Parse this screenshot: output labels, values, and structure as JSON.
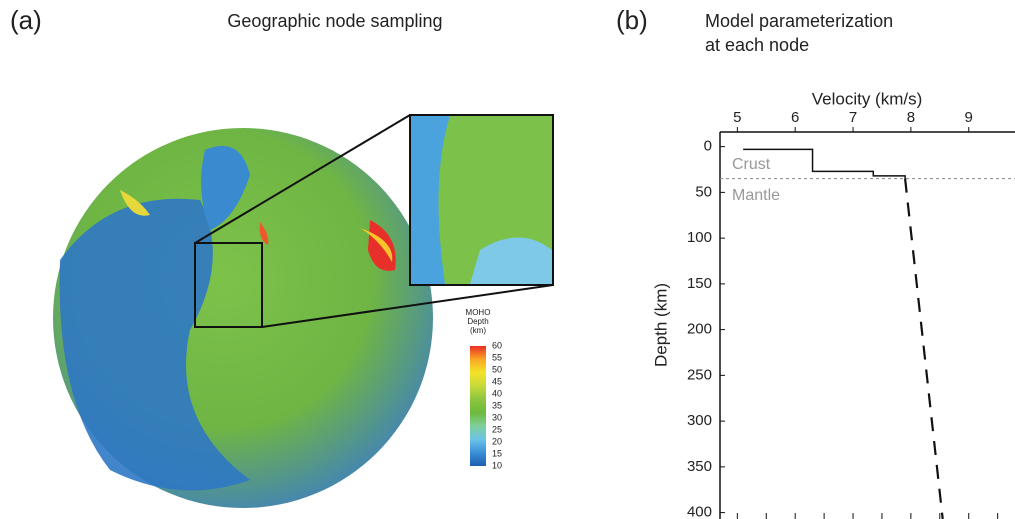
{
  "panel_a": {
    "label": "(a)",
    "title": "Geographic node sampling",
    "colorbar": {
      "title": [
        "MOHO",
        "Depth",
        "(km)"
      ],
      "lim": [
        10,
        60
      ],
      "ticks": [
        10,
        15,
        20,
        25,
        30,
        35,
        40,
        45,
        50,
        55,
        60
      ],
      "colors": [
        "#1e5fb0",
        "#3a8fd8",
        "#6cc3e8",
        "#7fcf9a",
        "#6dbb3c",
        "#8cc63f",
        "#c7d93a",
        "#f3e32a",
        "#f7a823",
        "#ee2d24"
      ]
    }
  },
  "chart_data": {
    "type": "line",
    "label": "(b)",
    "title": [
      "Model parameterization",
      "at each node"
    ],
    "x_label": "Velocity (km/s)",
    "y_label": "Depth (km)",
    "xlim": [
      4.7,
      9.8
    ],
    "ylim": [
      -16,
      407
    ],
    "y_inverted": true,
    "xticks": [
      5,
      6,
      7,
      8,
      9
    ],
    "yticks": [
      0,
      50,
      100,
      150,
      200,
      250,
      300,
      350,
      400
    ],
    "minor_xticks": [
      5,
      5.5,
      6,
      6.5,
      7,
      7.5,
      8,
      8.5,
      9,
      9.5
    ],
    "reference_line": 35,
    "annotations": [
      "Crust",
      "Mantle"
    ],
    "series": [
      {
        "color": "#111111",
        "dash": false,
        "x": [
          5.1,
          6.3,
          6.3,
          7.35,
          7.35,
          7.9,
          7.9
        ],
        "values": [
          3,
          3,
          27,
          27,
          32,
          32,
          35
        ]
      },
      {
        "color": "#111111",
        "dash": true,
        "x": [
          7.9,
          8.55
        ],
        "values": [
          35,
          407
        ]
      }
    ]
  }
}
